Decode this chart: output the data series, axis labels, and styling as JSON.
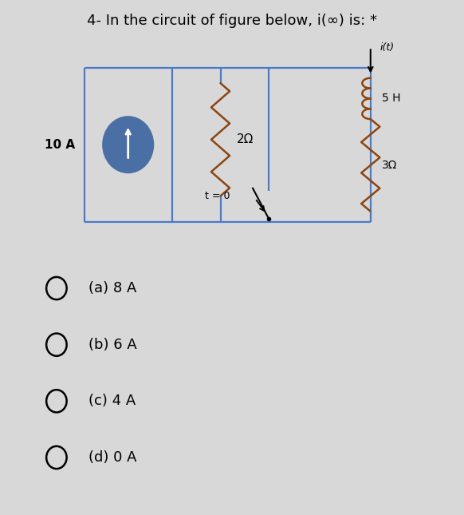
{
  "title": "4- In the circuit of figure below, i(∞) is: *",
  "title_fontsize": 13,
  "background_color": "#d8d8d8",
  "choices": [
    "(a) 8 A",
    "(b) 6 A",
    "(c) 4 A",
    "(d) 0 A"
  ],
  "circuit": {
    "BL": 0.18,
    "BR": 0.8,
    "BT": 0.87,
    "BB": 0.57,
    "MV1": 0.37,
    "MV2": 0.58,
    "wire_color": "#4a7ac9",
    "component_color": "#8B4513",
    "source_color": "#4a6fa5",
    "resistor_2ohm_label": "2Ω",
    "resistor_3ohm_label": "3Ω",
    "inductor_label": "5 H",
    "source_label": "10 A",
    "switch_label": "t = 0",
    "current_label": "i(t)"
  }
}
